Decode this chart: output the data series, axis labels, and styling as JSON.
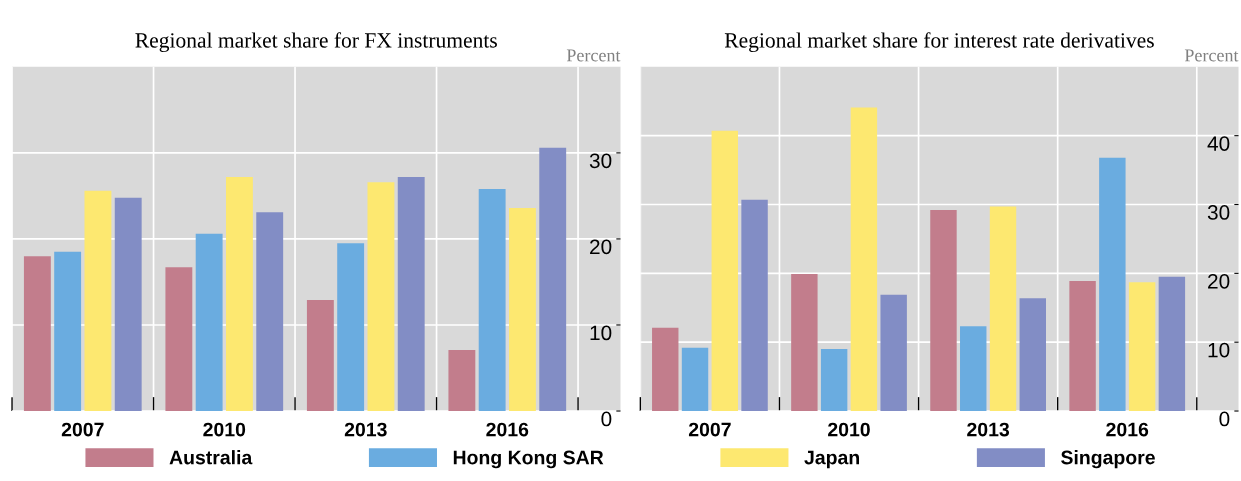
{
  "chart_data": [
    {
      "type": "bar",
      "title": "Regional market share for FX instruments",
      "ylabel": "Percent",
      "categories": [
        "2007",
        "2010",
        "2013",
        "2016"
      ],
      "series": [
        {
          "name": "Australia",
          "color": "#c27d8c",
          "values": [
            18.0,
            16.7,
            12.9,
            7.1
          ]
        },
        {
          "name": "Hong Kong SAR",
          "color": "#6aace0",
          "values": [
            18.5,
            20.6,
            19.5,
            25.8
          ]
        },
        {
          "name": "Japan",
          "color": "#fde870",
          "values": [
            25.6,
            27.2,
            26.6,
            23.6
          ]
        },
        {
          "name": "Singapore",
          "color": "#828dc5",
          "values": [
            24.8,
            23.1,
            27.2,
            30.6
          ]
        }
      ],
      "ylim": [
        0,
        40
      ],
      "yticks": [
        0,
        10,
        20,
        30
      ],
      "grid": true,
      "legend": "bottom"
    },
    {
      "type": "bar",
      "title": "Regional market share for interest rate derivatives",
      "ylabel": "Percent",
      "categories": [
        "2007",
        "2010",
        "2013",
        "2016"
      ],
      "series": [
        {
          "name": "Australia",
          "color": "#c27d8c",
          "values": [
            12.1,
            19.9,
            29.2,
            18.9
          ]
        },
        {
          "name": "Hong Kong SAR",
          "color": "#6aace0",
          "values": [
            9.2,
            9.0,
            12.3,
            36.8
          ]
        },
        {
          "name": "Japan",
          "color": "#fde870",
          "values": [
            40.7,
            44.1,
            29.7,
            18.7
          ]
        },
        {
          "name": "Singapore",
          "color": "#828dc5",
          "values": [
            30.7,
            16.9,
            16.4,
            19.5
          ]
        }
      ],
      "ylim": [
        0,
        50
      ],
      "yticks": [
        0,
        10,
        20,
        30,
        40
      ],
      "grid": true,
      "legend": "bottom"
    }
  ]
}
